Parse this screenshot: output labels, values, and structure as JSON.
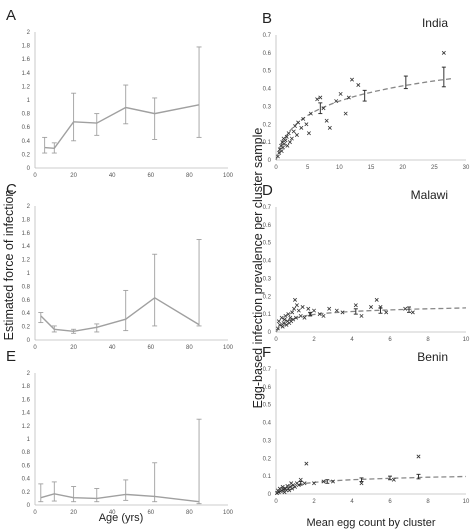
{
  "figure": {
    "left_xlabel": "Age (yrs)",
    "left_ylabel": "Estimated force of infection",
    "right_xlabel": "Mean egg count by cluster",
    "right_ylabel": "Egg-based infection prevalence per cluster sample"
  },
  "colors": {
    "foi_line": "#a0a0a0",
    "marker": "#333333",
    "fit": "#888888",
    "axis": "#bbbbbb"
  },
  "chart_data": [
    {
      "panel": "A",
      "type": "line",
      "title": "",
      "xlim": [
        0,
        100
      ],
      "ylim": [
        0,
        2
      ],
      "xticks": [
        "0",
        "20",
        "40",
        "60",
        "80",
        "100"
      ],
      "yticks": [
        "0",
        "0.2",
        "0.4",
        "0.6",
        "0.8",
        "1",
        "1.2",
        "1.4",
        "1.6",
        "1.8",
        "2"
      ],
      "x": [
        5,
        10,
        20,
        32,
        47,
        62,
        85
      ],
      "y": [
        0.3,
        0.29,
        0.68,
        0.66,
        0.89,
        0.8,
        0.93
      ],
      "lower": [
        0.22,
        0.22,
        0.4,
        0.48,
        0.65,
        0.42,
        0.45
      ],
      "upper": [
        0.45,
        0.37,
        1.1,
        0.8,
        1.22,
        1.03,
        1.78
      ]
    },
    {
      "panel": "B",
      "type": "scatter",
      "title": "India",
      "xlim": [
        0,
        30
      ],
      "ylim": [
        0,
        0.7
      ],
      "xticks": [
        "0",
        "5",
        "10",
        "15",
        "20",
        "25",
        "30"
      ],
      "yticks": [
        "0",
        "0.1",
        "0.2",
        "0.3",
        "0.4",
        "0.5",
        "0.6",
        "0.7"
      ],
      "points": [
        [
          0.3,
          0.02
        ],
        [
          0.5,
          0.04
        ],
        [
          0.6,
          0.06
        ],
        [
          0.8,
          0.08
        ],
        [
          0.9,
          0.05
        ],
        [
          1.0,
          0.1
        ],
        [
          1.1,
          0.07
        ],
        [
          1.2,
          0.12
        ],
        [
          1.3,
          0.09
        ],
        [
          1.5,
          0.11
        ],
        [
          1.7,
          0.13
        ],
        [
          1.8,
          0.08
        ],
        [
          2.0,
          0.15
        ],
        [
          2.2,
          0.1
        ],
        [
          2.5,
          0.12
        ],
        [
          2.8,
          0.16
        ],
        [
          3.0,
          0.19
        ],
        [
          3.3,
          0.14
        ],
        [
          3.5,
          0.21
        ],
        [
          4.0,
          0.18
        ],
        [
          4.3,
          0.23
        ],
        [
          4.8,
          0.2
        ],
        [
          5.2,
          0.15
        ],
        [
          5.5,
          0.26
        ],
        [
          6.5,
          0.34
        ],
        [
          7.0,
          0.35
        ],
        [
          7.5,
          0.29
        ],
        [
          8.0,
          0.22
        ],
        [
          8.5,
          0.18
        ],
        [
          9.5,
          0.33
        ],
        [
          10.2,
          0.37
        ],
        [
          11.0,
          0.26
        ],
        [
          11.5,
          0.35
        ],
        [
          12.0,
          0.45
        ],
        [
          13.0,
          0.42
        ],
        [
          26.5,
          0.6
        ]
      ],
      "fit_x": [
        0,
        1,
        2,
        3,
        4,
        5,
        6,
        7,
        8,
        9,
        10,
        12,
        14,
        16,
        18,
        20,
        22,
        24,
        26,
        28
      ],
      "fit_y": [
        0,
        0.1,
        0.155,
        0.195,
        0.225,
        0.25,
        0.27,
        0.288,
        0.303,
        0.317,
        0.33,
        0.352,
        0.371,
        0.387,
        0.402,
        0.415,
        0.427,
        0.438,
        0.448,
        0.457
      ],
      "err_x": [
        7.0,
        14.0,
        20.5,
        26.5
      ],
      "err_y": [
        0.29,
        0.36,
        0.43,
        0.46
      ],
      "err_lo": [
        0.26,
        0.33,
        0.4,
        0.41
      ],
      "err_hi": [
        0.32,
        0.39,
        0.47,
        0.52
      ]
    },
    {
      "panel": "C",
      "type": "line",
      "title": "",
      "xlim": [
        0,
        100
      ],
      "ylim": [
        0,
        2
      ],
      "xticks": [
        "0",
        "20",
        "40",
        "60",
        "80",
        "100"
      ],
      "yticks": [
        "0",
        "0.2",
        "0.4",
        "0.6",
        "0.8",
        "1",
        "1.2",
        "1.4",
        "1.6",
        "1.8",
        "2"
      ],
      "x": [
        3,
        10,
        20,
        32,
        47,
        62,
        85
      ],
      "y": [
        0.36,
        0.16,
        0.13,
        0.19,
        0.31,
        0.63,
        0.23
      ],
      "lower": [
        0.26,
        0.12,
        0.1,
        0.12,
        0.14,
        0.21,
        0.21
      ],
      "upper": [
        0.41,
        0.21,
        0.16,
        0.24,
        0.74,
        1.28,
        1.5
      ]
    },
    {
      "panel": "D",
      "type": "scatter",
      "title": "Malawi",
      "xlim": [
        0,
        10
      ],
      "ylim": [
        0,
        0.7
      ],
      "xticks": [
        "0",
        "2",
        "4",
        "6",
        "8",
        "10"
      ],
      "yticks": [
        "0",
        "0.1",
        "0.2",
        "0.3",
        "0.4",
        "0.5",
        "0.6",
        "0.7"
      ],
      "points": [
        [
          0.1,
          0.02
        ],
        [
          0.15,
          0.06
        ],
        [
          0.2,
          0.04
        ],
        [
          0.3,
          0.08
        ],
        [
          0.35,
          0.03
        ],
        [
          0.4,
          0.05
        ],
        [
          0.45,
          0.07
        ],
        [
          0.5,
          0.09
        ],
        [
          0.55,
          0.04
        ],
        [
          0.6,
          0.06
        ],
        [
          0.65,
          0.1
        ],
        [
          0.7,
          0.05
        ],
        [
          0.75,
          0.08
        ],
        [
          0.8,
          0.06
        ],
        [
          0.85,
          0.11
        ],
        [
          0.9,
          0.07
        ],
        [
          0.95,
          0.13
        ],
        [
          1.0,
          0.18
        ],
        [
          1.05,
          0.08
        ],
        [
          1.1,
          0.15
        ],
        [
          1.2,
          0.12
        ],
        [
          1.3,
          0.09
        ],
        [
          1.4,
          0.14
        ],
        [
          1.5,
          0.08
        ],
        [
          1.7,
          0.13
        ],
        [
          1.8,
          0.1
        ],
        [
          2.0,
          0.12
        ],
        [
          2.3,
          0.1
        ],
        [
          2.5,
          0.09
        ],
        [
          2.8,
          0.13
        ],
        [
          3.2,
          0.12
        ],
        [
          3.5,
          0.11
        ],
        [
          4.2,
          0.15
        ],
        [
          4.5,
          0.09
        ],
        [
          5.0,
          0.14
        ],
        [
          5.3,
          0.18
        ],
        [
          5.5,
          0.14
        ],
        [
          5.8,
          0.11
        ],
        [
          6.8,
          0.13
        ],
        [
          7.2,
          0.11
        ]
      ],
      "fit_x": [
        0,
        0.25,
        0.5,
        0.75,
        1,
        1.5,
        2,
        2.5,
        3,
        4,
        5,
        6,
        7,
        8,
        9,
        10
      ],
      "fit_y": [
        0,
        0.035,
        0.055,
        0.068,
        0.077,
        0.09,
        0.098,
        0.104,
        0.108,
        0.115,
        0.12,
        0.124,
        0.127,
        0.13,
        0.132,
        0.135
      ],
      "err_x": [
        1.8,
        4.2,
        5.5,
        7.0
      ],
      "err_y": [
        0.1,
        0.115,
        0.12,
        0.125
      ],
      "err_lo": [
        0.09,
        0.1,
        0.105,
        0.11
      ],
      "err_hi": [
        0.11,
        0.13,
        0.135,
        0.14
      ]
    },
    {
      "panel": "E",
      "type": "line",
      "title": "",
      "xlim": [
        0,
        100
      ],
      "ylim": [
        0,
        2
      ],
      "xticks": [
        "0",
        "20",
        "40",
        "60",
        "80",
        "100"
      ],
      "yticks": [
        "0",
        "0.2",
        "0.4",
        "0.6",
        "0.8",
        "1",
        "1.2",
        "1.4",
        "1.6",
        "1.8",
        "2"
      ],
      "x": [
        3,
        10,
        20,
        32,
        47,
        62,
        85
      ],
      "y": [
        0.11,
        0.17,
        0.11,
        0.1,
        0.16,
        0.13,
        0.05
      ],
      "lower": [
        0.05,
        0.06,
        0.05,
        0.05,
        0.07,
        0.05,
        0.02
      ],
      "upper": [
        0.32,
        0.35,
        0.28,
        0.25,
        0.38,
        0.64,
        1.3
      ]
    },
    {
      "panel": "F",
      "type": "scatter",
      "title": "Benin",
      "xlim": [
        0,
        10
      ],
      "ylim": [
        0,
        0.7
      ],
      "xticks": [
        "0",
        "2",
        "4",
        "6",
        "8",
        "10"
      ],
      "yticks": [
        "0",
        "0.1",
        "0.2",
        "0.3",
        "0.4",
        "0.5",
        "0.6",
        "0.7"
      ],
      "points": [
        [
          0.05,
          0.005
        ],
        [
          0.1,
          0.02
        ],
        [
          0.15,
          0.01
        ],
        [
          0.2,
          0.03
        ],
        [
          0.25,
          0.015
        ],
        [
          0.3,
          0.02
        ],
        [
          0.35,
          0.04
        ],
        [
          0.4,
          0.025
        ],
        [
          0.45,
          0.01
        ],
        [
          0.5,
          0.03
        ],
        [
          0.55,
          0.02
        ],
        [
          0.6,
          0.045
        ],
        [
          0.65,
          0.03
        ],
        [
          0.7,
          0.02
        ],
        [
          0.75,
          0.04
        ],
        [
          0.8,
          0.06
        ],
        [
          0.85,
          0.03
        ],
        [
          0.9,
          0.05
        ],
        [
          1.0,
          0.04
        ],
        [
          1.1,
          0.06
        ],
        [
          1.2,
          0.05
        ],
        [
          1.3,
          0.08
        ],
        [
          1.5,
          0.06
        ],
        [
          1.6,
          0.17
        ],
        [
          2.0,
          0.06
        ],
        [
          2.5,
          0.07
        ],
        [
          3.0,
          0.07
        ],
        [
          4.5,
          0.06
        ],
        [
          6.2,
          0.08
        ],
        [
          7.5,
          0.21
        ]
      ],
      "fit_x": [
        0,
        0.25,
        0.5,
        0.75,
        1,
        1.5,
        2,
        2.5,
        3,
        4,
        5,
        6,
        7,
        8,
        9,
        10
      ],
      "fit_y": [
        0,
        0.022,
        0.035,
        0.043,
        0.05,
        0.059,
        0.065,
        0.07,
        0.074,
        0.08,
        0.084,
        0.088,
        0.091,
        0.094,
        0.096,
        0.098
      ],
      "err_x": [
        1.3,
        2.7,
        4.5,
        6.0,
        7.5
      ],
      "err_y": [
        0.06,
        0.07,
        0.08,
        0.09,
        0.095
      ],
      "err_lo": [
        0.05,
        0.06,
        0.07,
        0.08,
        0.085
      ],
      "err_hi": [
        0.07,
        0.08,
        0.09,
        0.1,
        0.11
      ]
    }
  ]
}
